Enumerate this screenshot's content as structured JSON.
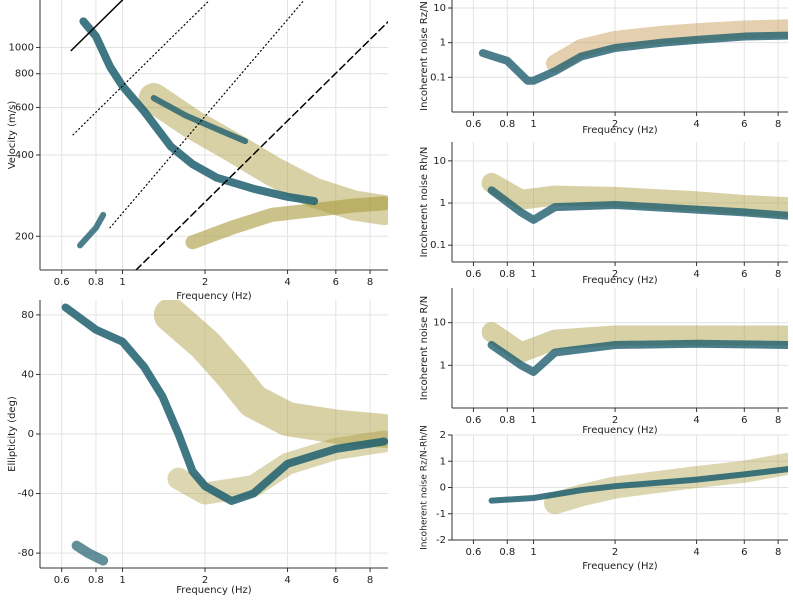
{
  "chart_data": [
    {
      "type": "line",
      "xlabel": "Frequency (Hz)",
      "ylabel": "Velocity (m/s)",
      "xlog": true,
      "ylog": true,
      "grid": true,
      "xlim": [
        0.5,
        9.3
      ],
      "ylim": [
        150,
        1500
      ],
      "xticks": [
        0.6,
        0.8,
        1,
        2,
        4,
        6,
        8
      ],
      "yticks": [
        200,
        400,
        600,
        800,
        1000
      ],
      "series": [
        {
          "color": "#a89a3a",
          "width": 30,
          "opacity": 0.45,
          "x": [
            1.3,
            1.8,
            2.5,
            3.5,
            5,
            7,
            9
          ],
          "values": [
            650,
            520,
            430,
            350,
            290,
            260,
            250
          ]
        },
        {
          "color": "#a89a3a",
          "width": 14,
          "opacity": 0.6,
          "x": [
            1.8,
            2.5,
            3.5,
            5,
            7,
            9
          ],
          "values": [
            190,
            215,
            240,
            250,
            260,
            265
          ]
        },
        {
          "color": "#1f5f6e",
          "width": 8,
          "opacity": 0.85,
          "x": [
            0.72,
            0.8,
            0.9,
            1.0,
            1.2,
            1.5,
            1.8,
            2.2,
            3,
            4,
            5
          ],
          "values": [
            1250,
            1100,
            850,
            720,
            580,
            430,
            370,
            330,
            300,
            280,
            270
          ]
        },
        {
          "color": "#1f5f6e",
          "width": 6,
          "opacity": 0.8,
          "x": [
            1.3,
            1.7,
            2.2,
            2.8
          ],
          "values": [
            650,
            560,
            500,
            450
          ]
        },
        {
          "color": "#1f5f6e",
          "width": 6,
          "opacity": 0.8,
          "x": [
            0.7,
            0.75,
            0.8,
            0.85
          ],
          "values": [
            185,
            200,
            215,
            240
          ]
        },
        {
          "color": "#000000",
          "width": 1.5,
          "dash": "none",
          "x": [
            0.65,
            1.0
          ],
          "values": [
            975,
            1500
          ]
        },
        {
          "color": "#000000",
          "width": 1.2,
          "dash": "1 3",
          "x": [
            0.66,
            2.08
          ],
          "values": [
            475,
            1500
          ]
        },
        {
          "color": "#000000",
          "width": 1.2,
          "dash": "1 3",
          "x": [
            0.9,
            4.6
          ],
          "values": [
            215,
            1500
          ]
        },
        {
          "color": "#000000",
          "width": 1.5,
          "dash": "7 4",
          "x": [
            1.12,
            9.3
          ],
          "values": [
            150,
            1245
          ]
        }
      ]
    },
    {
      "type": "line",
      "xlabel": "Frequency (Hz)",
      "ylabel": "Ellipticity (deg)",
      "xlog": true,
      "ylog": false,
      "grid": true,
      "xlim": [
        0.5,
        9.3
      ],
      "ylim": [
        -90,
        90
      ],
      "xticks": [
        0.6,
        0.8,
        1,
        2,
        4,
        6,
        8
      ],
      "yticks": [
        -80,
        -40,
        0,
        40,
        80
      ],
      "series": [
        {
          "color": "#a89a3a",
          "width": 34,
          "opacity": 0.45,
          "x": [
            1.5,
            2,
            2.5,
            3,
            4,
            6,
            9
          ],
          "values": [
            80,
            60,
            40,
            22,
            10,
            5,
            2
          ]
        },
        {
          "color": "#a89a3a",
          "width": 22,
          "opacity": 0.4,
          "x": [
            1.6,
            2,
            3,
            4,
            6,
            9
          ],
          "values": [
            -30,
            -40,
            -35,
            -20,
            -10,
            -5
          ]
        },
        {
          "color": "#1f5f6e",
          "width": 8,
          "opacity": 0.85,
          "x": [
            0.62,
            0.8,
            1.0,
            1.2,
            1.4,
            1.6,
            1.8,
            2,
            2.5,
            3,
            4,
            6,
            9
          ],
          "values": [
            85,
            70,
            62,
            45,
            25,
            0,
            -25,
            -35,
            -45,
            -40,
            -20,
            -10,
            -5
          ]
        },
        {
          "color": "#1f5f6e",
          "width": 10,
          "opacity": 0.7,
          "x": [
            0.68,
            0.75,
            0.85
          ],
          "values": [
            -75,
            -80,
            -85
          ]
        }
      ]
    },
    {
      "type": "line",
      "xlabel": "Frequency (Hz)",
      "ylabel": "Incoherent noise Rz/N",
      "xlog": true,
      "ylog": true,
      "grid": true,
      "xlim": [
        0.5,
        8.7
      ],
      "ylim": [
        0.01,
        17
      ],
      "xticks": [
        0.6,
        0.8,
        1,
        2,
        4,
        6,
        8
      ],
      "yticks": [
        0.1,
        1,
        10
      ],
      "series": [
        {
          "color": "#c9a060",
          "width": 18,
          "opacity": 0.5,
          "x": [
            1.2,
            1.5,
            2,
            3,
            4,
            6,
            8.7
          ],
          "values": [
            0.25,
            0.7,
            1.2,
            1.7,
            2,
            2.4,
            2.6
          ]
        },
        {
          "color": "#1f5f6e",
          "width": 8,
          "opacity": 0.8,
          "x": [
            0.65,
            0.8,
            0.95,
            1.0,
            1.2,
            1.5,
            2,
            3,
            4,
            6,
            8.7
          ],
          "values": [
            0.5,
            0.3,
            0.08,
            0.08,
            0.15,
            0.4,
            0.7,
            1,
            1.2,
            1.5,
            1.6
          ]
        }
      ]
    },
    {
      "type": "line",
      "xlabel": "Frequency (Hz)",
      "ylabel": "Incoherent noise Rh/N",
      "xlog": true,
      "ylog": true,
      "grid": true,
      "xlim": [
        0.5,
        8.7
      ],
      "ylim": [
        0.04,
        28
      ],
      "xticks": [
        0.6,
        0.8,
        1,
        2,
        4,
        6,
        8
      ],
      "yticks": [
        0.1,
        1,
        10
      ],
      "series": [
        {
          "color": "#a89a3a",
          "width": 20,
          "opacity": 0.45,
          "x": [
            0.7,
            0.9,
            1.2,
            2,
            4,
            6,
            8.7
          ],
          "values": [
            3,
            1.2,
            1.5,
            1.4,
            1.1,
            0.9,
            0.8
          ]
        },
        {
          "color": "#1f5f6e",
          "width": 8,
          "opacity": 0.8,
          "x": [
            0.7,
            0.9,
            1.0,
            1.2,
            2,
            4,
            6,
            8.7
          ],
          "values": [
            2,
            0.6,
            0.4,
            0.8,
            0.9,
            0.7,
            0.6,
            0.5
          ]
        }
      ]
    },
    {
      "type": "line",
      "xlabel": "Frequency (Hz)",
      "ylabel": "Incoherent noise R/N",
      "xlog": true,
      "ylog": true,
      "grid": true,
      "xlim": [
        0.5,
        8.7
      ],
      "ylim": [
        0.1,
        65
      ],
      "xticks": [
        0.6,
        0.8,
        1,
        2,
        4,
        6,
        8
      ],
      "yticks": [
        1,
        10
      ],
      "series": [
        {
          "color": "#a89a3a",
          "width": 20,
          "opacity": 0.45,
          "x": [
            0.7,
            0.9,
            1.2,
            2,
            4,
            8.7
          ],
          "values": [
            6,
            2,
            4,
            5,
            5,
            5
          ]
        },
        {
          "color": "#1f5f6e",
          "width": 8,
          "opacity": 0.8,
          "x": [
            0.7,
            0.9,
            1.0,
            1.2,
            2,
            4,
            8.7
          ],
          "values": [
            3,
            1,
            0.7,
            2,
            3,
            3.2,
            3
          ]
        }
      ]
    },
    {
      "type": "line",
      "xlabel": "Frequency (Hz)",
      "ylabel": "Incoherent noise Rz/N-Rh/N",
      "xlog": true,
      "ylog": false,
      "grid": true,
      "xlim": [
        0.5,
        8.7
      ],
      "ylim": [
        -2,
        2
      ],
      "xticks": [
        0.6,
        0.8,
        1,
        2,
        4,
        6,
        8
      ],
      "yticks": [
        -2,
        -1,
        0,
        1,
        2
      ],
      "series": [
        {
          "color": "#a89a3a",
          "width": 22,
          "opacity": 0.4,
          "x": [
            1.2,
            1.5,
            2,
            4,
            6,
            8.7
          ],
          "values": [
            -0.6,
            -0.3,
            0,
            0.4,
            0.6,
            0.9
          ]
        },
        {
          "color": "#1f5f6e",
          "width": 6,
          "opacity": 0.85,
          "x": [
            0.7,
            1,
            1.5,
            2,
            4,
            6,
            8.7
          ],
          "values": [
            -0.5,
            -0.4,
            -0.1,
            0.05,
            0.3,
            0.5,
            0.7
          ]
        }
      ]
    }
  ]
}
